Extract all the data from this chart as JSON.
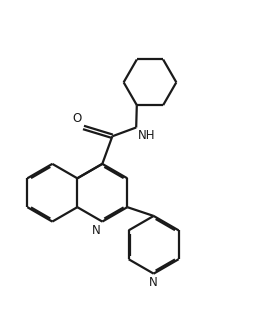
{
  "background_color": "#ffffff",
  "line_color": "#1a1a1a",
  "line_width": 1.6,
  "font_size": 8.5,
  "figsize": [
    2.55,
    3.29
  ],
  "dpi": 100,
  "xlim": [
    0,
    10
  ],
  "ylim": [
    0,
    13
  ]
}
